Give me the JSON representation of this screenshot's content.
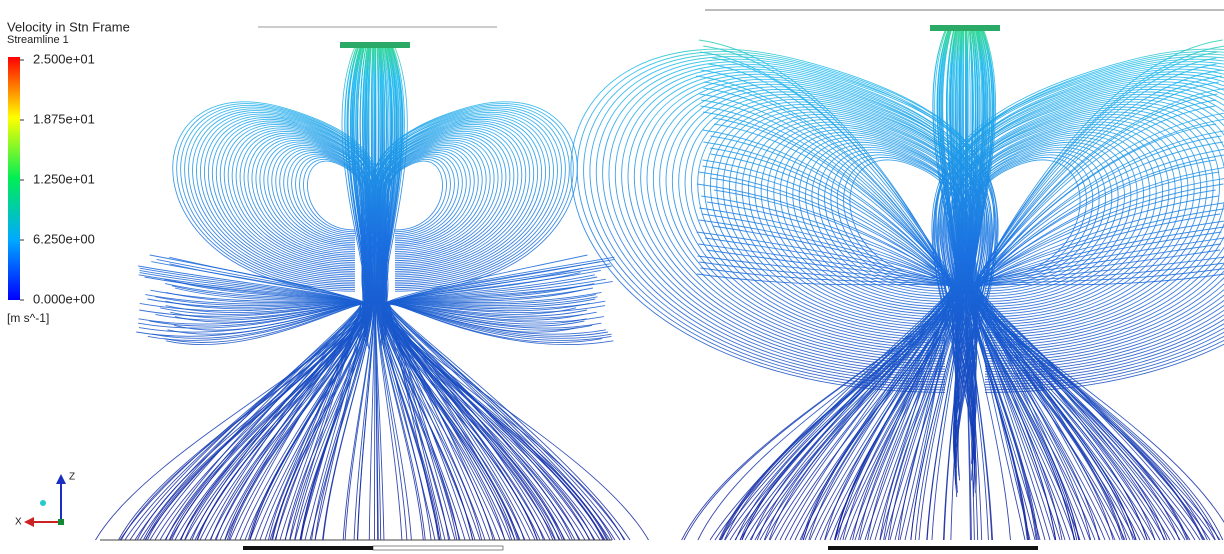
{
  "legend": {
    "title": "Velocity in Stn Frame",
    "subtitle": "Streamline 1",
    "ticks": [
      {
        "value": 25,
        "label": "2.500e+01"
      },
      {
        "value": 18.75,
        "label": "1.875e+01"
      },
      {
        "value": 12.5,
        "label": "1.250e+01"
      },
      {
        "value": 6.25,
        "label": "6.250e+00"
      },
      {
        "value": 0,
        "label": "0.000e+00"
      }
    ],
    "unit": "[m s^-1]"
  },
  "axes": {
    "z": "Z",
    "x": "X"
  }
}
